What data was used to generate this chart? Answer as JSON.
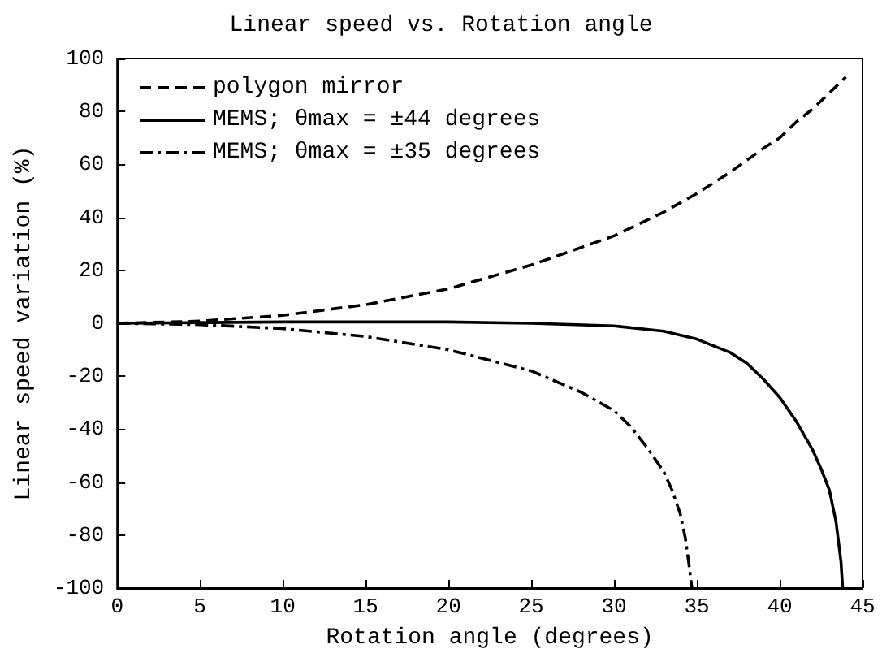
{
  "chart_data": {
    "type": "line",
    "title": "Linear speed vs. Rotation angle",
    "xlabel": "Rotation angle (degrees)",
    "ylabel": "Linear speed variation (%)",
    "xlim": [
      0,
      45
    ],
    "xticks": [
      0,
      5,
      10,
      15,
      20,
      25,
      30,
      35,
      40,
      45
    ],
    "ylim": [
      -100,
      100
    ],
    "yticks": [
      -100,
      -80,
      -60,
      -40,
      -20,
      0,
      20,
      40,
      60,
      80,
      100
    ],
    "grid": false,
    "legend": "top left",
    "marker": "none",
    "series": [
      {
        "name": "polygon mirror",
        "color": "#000000",
        "line_style": "dashed",
        "x": [
          0,
          5,
          10,
          15,
          20,
          25,
          30,
          33,
          35,
          37,
          39,
          40,
          41,
          42,
          43,
          44
        ],
        "values": [
          0,
          0.8,
          3,
          7,
          13,
          22,
          33,
          42,
          49,
          57,
          66,
          70,
          76,
          81,
          87,
          93
        ]
      },
      {
        "name": "MEMS; θmax = ±44 degrees",
        "color": "#000000",
        "line_style": "solid",
        "x": [
          0,
          10,
          20,
          25,
          30,
          33,
          35,
          37,
          38,
          39,
          40,
          41,
          42,
          42.5,
          43,
          43.4,
          43.7,
          43.8
        ],
        "values": [
          0,
          0.5,
          0.5,
          0,
          -1,
          -3,
          -6,
          -11,
          -15,
          -21,
          -28,
          -37,
          -48,
          -55,
          -63,
          -75,
          -90,
          -100
        ]
      },
      {
        "name": "MEMS; θmax = ±35 degrees",
        "color": "#000000",
        "line_style": "dashdot",
        "x": [
          0,
          5,
          10,
          15,
          20,
          25,
          28,
          30,
          31,
          32,
          33,
          33.5,
          34,
          34.3,
          34.5,
          34.7
        ],
        "values": [
          0,
          -0.5,
          -2,
          -5,
          -10,
          -18,
          -26,
          -33,
          -39,
          -47,
          -56,
          -63,
          -72,
          -81,
          -90,
          -100
        ]
      }
    ]
  }
}
